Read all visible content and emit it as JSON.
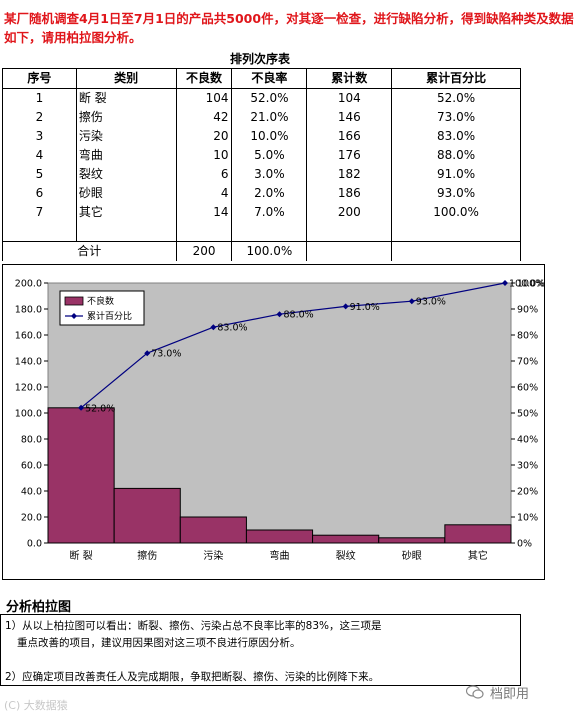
{
  "intro_text": "某厂随机调查4月1日至7月1日的产品共5000件，对其逐一检查，进行缺陷分析，得到缺陷种类及数据如下，请用柏拉图分析。",
  "table": {
    "title": "排列次序表",
    "headers": [
      "序号",
      "类别",
      "不良数",
      "不良率",
      "累计数",
      "累计百分比"
    ],
    "rows": [
      [
        "1",
        "断 裂",
        "104",
        "52.0%",
        "104",
        "52.0%"
      ],
      [
        "2",
        "擦伤",
        "42",
        "21.0%",
        "146",
        "73.0%"
      ],
      [
        "3",
        "污染",
        "20",
        "10.0%",
        "166",
        "83.0%"
      ],
      [
        "4",
        "弯曲",
        "10",
        "5.0%",
        "176",
        "88.0%"
      ],
      [
        "5",
        "裂纹",
        "6",
        "3.0%",
        "182",
        "91.0%"
      ],
      [
        "6",
        "砂眼",
        "4",
        "2.0%",
        "186",
        "93.0%"
      ],
      [
        "7",
        "其它",
        "14",
        "7.0%",
        "200",
        "100.0%"
      ]
    ],
    "total_label": "合计",
    "total_count": "200",
    "total_rate": "100.0%"
  },
  "chart_data": {
    "type": "bar",
    "categories": [
      "断 裂",
      "擦伤",
      "污染",
      "弯曲",
      "裂纹",
      "砂眼",
      "其它"
    ],
    "series": [
      {
        "name": "不良数",
        "type": "bar",
        "values": [
          104,
          42,
          20,
          10,
          6,
          4,
          14
        ],
        "color": "#993366"
      },
      {
        "name": "累计百分比",
        "type": "line",
        "axis": "right",
        "values": [
          52.0,
          73.0,
          83.0,
          88.0,
          91.0,
          93.0,
          100.0
        ],
        "labels": [
          "52.0%",
          "73.0%",
          "83.0%",
          "88.0%",
          "91.0%",
          "93.0%",
          "100.0%"
        ],
        "color": "#000080"
      }
    ],
    "ylim": [
      0,
      200
    ],
    "y_ticks": [
      "0.0",
      "20.0",
      "40.0",
      "60.0",
      "80.0",
      "100.0",
      "120.0",
      "140.0",
      "160.0",
      "180.0",
      "200.0"
    ],
    "y2lim": [
      0,
      100
    ],
    "y2_ticks": [
      "0%",
      "10%",
      "20%",
      "30%",
      "40%",
      "50%",
      "60%",
      "70%",
      "80%",
      "90%",
      "100%"
    ],
    "legend": "top-left",
    "plot_background": "#c0c0c0"
  },
  "analysis": {
    "title": "分析柏拉图",
    "line1a": "1）从以上柏拉图可以看出：断裂、擦伤、污染占总不良率比率的83%，这三项是",
    "line1b": "重点改善的项目，建议用因果图对这三项不良进行原因分析。",
    "line2": "2）应确定项目改善责任人及完成期限，争取把断裂、擦伤、污染的比例降下来。"
  },
  "watermark": {
    "left": "(C) 大数据猿",
    "right": "档即用"
  }
}
